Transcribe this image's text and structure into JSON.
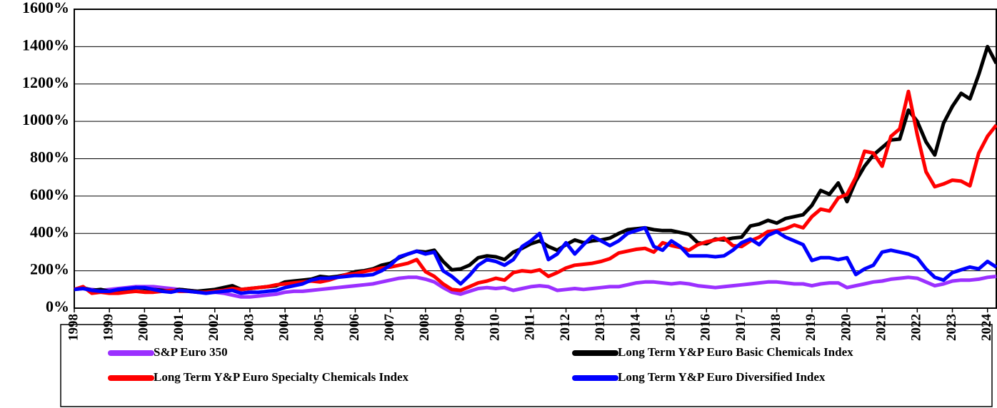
{
  "chart_data": {
    "type": "line",
    "categories": [
      "1998",
      null,
      null,
      null,
      "1999",
      null,
      null,
      null,
      "2000",
      null,
      null,
      null,
      "2001",
      null,
      null,
      null,
      "2002",
      null,
      null,
      null,
      "2003",
      null,
      null,
      null,
      "2004",
      null,
      null,
      null,
      "2005",
      null,
      null,
      null,
      "2006",
      null,
      null,
      null,
      "2007",
      null,
      null,
      null,
      "2008",
      null,
      null,
      null,
      "2009",
      null,
      null,
      null,
      "2010",
      null,
      null,
      null,
      "2011",
      null,
      null,
      null,
      "2012",
      null,
      null,
      null,
      "2013",
      null,
      null,
      null,
      "2014",
      null,
      null,
      null,
      "2015",
      null,
      null,
      null,
      "2016",
      null,
      null,
      null,
      "2017",
      null,
      null,
      null,
      "2018",
      null,
      null,
      null,
      "2019",
      null,
      null,
      null,
      "2020",
      null,
      null,
      null,
      "2021",
      null,
      null,
      null,
      "2022",
      null,
      null,
      null,
      "2023",
      null,
      null,
      null,
      "2024",
      null
    ],
    "series": [
      {
        "name": "S&P Euro 350",
        "color": "#9b30ff",
        "values": [
          100,
          105,
          100,
          95,
          100,
          105,
          110,
          115,
          115,
          115,
          110,
          105,
          100,
          95,
          90,
          85,
          85,
          80,
          70,
          60,
          60,
          65,
          70,
          75,
          85,
          90,
          90,
          95,
          100,
          105,
          110,
          115,
          120,
          125,
          130,
          140,
          150,
          160,
          165,
          165,
          155,
          140,
          110,
          85,
          75,
          90,
          105,
          110,
          105,
          110,
          95,
          105,
          115,
          120,
          115,
          95,
          100,
          105,
          100,
          105,
          110,
          115,
          115,
          125,
          135,
          140,
          140,
          135,
          130,
          135,
          130,
          120,
          115,
          110,
          115,
          120,
          125,
          130,
          135,
          140,
          140,
          135,
          130,
          130,
          120,
          130,
          135,
          135,
          110,
          120,
          130,
          140,
          145,
          155,
          160,
          165,
          160,
          140,
          120,
          130,
          145,
          150,
          150,
          155,
          165,
          170
        ]
      },
      {
        "name": "Long Term Y&P Euro Basic Chemicals Index",
        "color": "#000000",
        "values": [
          100,
          110,
          95,
          100,
          90,
          95,
          100,
          110,
          105,
          100,
          95,
          90,
          100,
          95,
          90,
          95,
          100,
          110,
          120,
          100,
          105,
          110,
          115,
          120,
          140,
          145,
          150,
          155,
          170,
          165,
          170,
          180,
          195,
          200,
          210,
          230,
          240,
          270,
          290,
          305,
          300,
          310,
          250,
          205,
          210,
          230,
          270,
          280,
          275,
          260,
          300,
          320,
          345,
          360,
          330,
          310,
          340,
          365,
          350,
          360,
          365,
          375,
          400,
          420,
          425,
          430,
          420,
          415,
          415,
          405,
          395,
          350,
          345,
          370,
          365,
          375,
          380,
          440,
          450,
          470,
          455,
          480,
          490,
          500,
          550,
          630,
          610,
          670,
          570,
          680,
          760,
          820,
          860,
          900,
          905,
          1060,
          1000,
          890,
          820,
          990,
          1080,
          1150,
          1120,
          1250,
          1400,
          1310
        ]
      },
      {
        "name": "Long Term Y&P Euro Specialty Chemicals Index",
        "color": "#ff0000",
        "values": [
          100,
          115,
          80,
          85,
          80,
          80,
          85,
          90,
          85,
          85,
          90,
          95,
          90,
          90,
          85,
          85,
          90,
          95,
          105,
          100,
          105,
          110,
          115,
          125,
          130,
          135,
          140,
          145,
          140,
          150,
          165,
          180,
          185,
          195,
          205,
          215,
          220,
          230,
          240,
          260,
          195,
          170,
          130,
          100,
          95,
          115,
          135,
          145,
          160,
          150,
          190,
          200,
          195,
          205,
          170,
          190,
          215,
          230,
          235,
          240,
          250,
          265,
          295,
          305,
          315,
          320,
          300,
          350,
          335,
          325,
          310,
          340,
          355,
          365,
          375,
          335,
          330,
          360,
          380,
          410,
          415,
          425,
          445,
          430,
          490,
          530,
          520,
          590,
          610,
          700,
          840,
          830,
          760,
          920,
          960,
          1160,
          930,
          730,
          650,
          665,
          685,
          680,
          655,
          830,
          920,
          980
        ]
      },
      {
        "name": "Long Term Y&P Euro Diversified Index",
        "color": "#0000ff",
        "values": [
          100,
          105,
          95,
          90,
          90,
          100,
          105,
          110,
          110,
          100,
          90,
          85,
          95,
          90,
          85,
          80,
          85,
          90,
          95,
          80,
          85,
          85,
          90,
          95,
          110,
          120,
          130,
          150,
          160,
          160,
          165,
          170,
          175,
          175,
          180,
          200,
          230,
          275,
          290,
          305,
          290,
          300,
          200,
          170,
          130,
          175,
          230,
          260,
          250,
          230,
          260,
          330,
          360,
          400,
          260,
          290,
          350,
          290,
          340,
          385,
          360,
          335,
          360,
          400,
          415,
          430,
          330,
          310,
          360,
          330,
          280,
          280,
          280,
          275,
          280,
          310,
          350,
          370,
          340,
          390,
          410,
          380,
          360,
          340,
          255,
          270,
          270,
          260,
          270,
          180,
          210,
          230,
          300,
          310,
          300,
          290,
          270,
          210,
          165,
          150,
          190,
          205,
          220,
          210,
          250,
          220
        ]
      }
    ],
    "ylim": [
      0,
      1600
    ],
    "yticks": [
      {
        "value": 0,
        "label": "0%"
      },
      {
        "value": 200,
        "label": "200%"
      },
      {
        "value": 400,
        "label": "400%"
      },
      {
        "value": 600,
        "label": "600%"
      },
      {
        "value": 800,
        "label": "800%"
      },
      {
        "value": 1000,
        "label": "1000%"
      },
      {
        "value": 1200,
        "label": "1200%"
      },
      {
        "value": 1400,
        "label": "1400%"
      },
      {
        "value": 1600,
        "label": "1600%"
      }
    ],
    "grid": true
  }
}
